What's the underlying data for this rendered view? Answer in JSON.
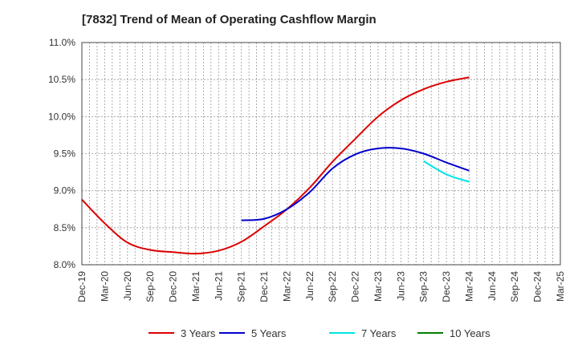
{
  "chart_data": {
    "type": "line",
    "title": "[7832]  Trend of Mean of Operating Cashflow Margin",
    "xlabel": "",
    "ylabel": "",
    "categories": [
      "Dec-19",
      "Mar-20",
      "Jun-20",
      "Sep-20",
      "Dec-20",
      "Mar-21",
      "Jun-21",
      "Sep-21",
      "Dec-21",
      "Mar-22",
      "Jun-22",
      "Sep-22",
      "Dec-22",
      "Mar-23",
      "Jun-23",
      "Sep-23",
      "Dec-23",
      "Mar-24",
      "Jun-24",
      "Sep-24",
      "Dec-24",
      "Mar-25"
    ],
    "ylim": [
      8.0,
      11.0
    ],
    "yticks": [
      8.0,
      8.5,
      9.0,
      9.5,
      10.0,
      10.5,
      11.0
    ],
    "ytick_labels": [
      "8.0%",
      "8.5%",
      "9.0%",
      "9.5%",
      "10.0%",
      "10.5%",
      "11.0%"
    ],
    "grid": true,
    "legend_position": "bottom",
    "series": [
      {
        "name": "3 Years",
        "color": "#dd0000",
        "values": [
          8.88,
          8.56,
          8.3,
          8.2,
          8.17,
          8.15,
          8.19,
          8.31,
          8.52,
          8.75,
          9.04,
          9.39,
          9.7,
          10.0,
          10.22,
          10.37,
          10.47,
          10.53,
          null,
          null,
          null,
          null
        ]
      },
      {
        "name": "5 Years",
        "color": "#0000cc",
        "values": [
          null,
          null,
          null,
          null,
          null,
          null,
          null,
          8.6,
          8.62,
          8.75,
          8.98,
          9.3,
          9.49,
          9.57,
          9.57,
          9.5,
          9.38,
          9.27,
          null,
          null,
          null,
          null
        ]
      },
      {
        "name": "7 Years",
        "color": "#00e5e5",
        "values": [
          null,
          null,
          null,
          null,
          null,
          null,
          null,
          null,
          null,
          null,
          null,
          null,
          null,
          null,
          null,
          9.4,
          9.22,
          9.12,
          null,
          null,
          null,
          null
        ]
      },
      {
        "name": "10 Years",
        "color": "#008000",
        "values": [
          null,
          null,
          null,
          null,
          null,
          null,
          null,
          null,
          null,
          null,
          null,
          null,
          null,
          null,
          null,
          null,
          null,
          null,
          null,
          null,
          null,
          null
        ]
      }
    ]
  }
}
